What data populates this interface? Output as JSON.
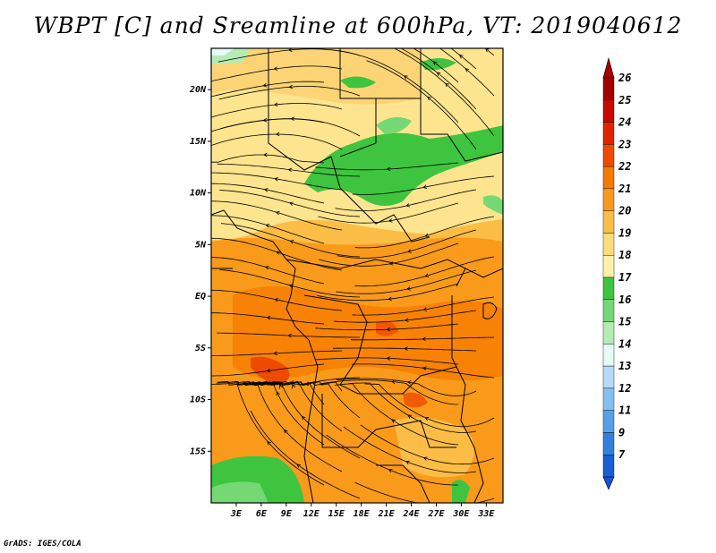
{
  "title": "WBPT [C] and Sreamline at 600hPa, VT: 2019040612",
  "credit": "GrADS: IGES/COLA",
  "map": {
    "lat_range": [
      -20,
      24
    ],
    "lon_range": [
      0,
      35
    ],
    "lat_ticks": [
      {
        "label": "20N",
        "value": 20
      },
      {
        "label": "15N",
        "value": 15
      },
      {
        "label": "10N",
        "value": 10
      },
      {
        "label": "5N",
        "value": 5
      },
      {
        "label": "EQ",
        "value": 0
      },
      {
        "label": "5S",
        "value": -5
      },
      {
        "label": "10S",
        "value": -10
      },
      {
        "label": "15S",
        "value": -15
      }
    ],
    "lon_ticks": [
      {
        "label": "3E",
        "value": 3
      },
      {
        "label": "6E",
        "value": 6
      },
      {
        "label": "9E",
        "value": 9
      },
      {
        "label": "12E",
        "value": 12
      },
      {
        "label": "15E",
        "value": 15
      },
      {
        "label": "18E",
        "value": 18
      },
      {
        "label": "21E",
        "value": 21
      },
      {
        "label": "24E",
        "value": 24
      },
      {
        "label": "27E",
        "value": 27
      },
      {
        "label": "30E",
        "value": 30
      },
      {
        "label": "33E",
        "value": 33
      }
    ]
  },
  "colorbar": {
    "levels": [
      {
        "label": "26",
        "color": "#a50000"
      },
      {
        "label": "25",
        "color": "#c80a00"
      },
      {
        "label": "24",
        "color": "#e02400"
      },
      {
        "label": "23",
        "color": "#ef4b00"
      },
      {
        "label": "22",
        "color": "#f57a00"
      },
      {
        "label": "21",
        "color": "#f99a1a"
      },
      {
        "label": "20",
        "color": "#fbbd46"
      },
      {
        "label": "19",
        "color": "#fddc7c"
      },
      {
        "label": "18",
        "color": "#fff1a8"
      },
      {
        "label": "17",
        "color": "#3ec43e"
      },
      {
        "label": "16",
        "color": "#74d874"
      },
      {
        "label": "15",
        "color": "#b4ecb4"
      },
      {
        "label": "14",
        "color": "#e6faf6"
      },
      {
        "label": "13",
        "color": "#b4dcf8"
      },
      {
        "label": "12",
        "color": "#84c0f0"
      },
      {
        "label": "11",
        "color": "#56a0ea"
      },
      {
        "label": "9",
        "color": "#3080e0"
      },
      {
        "label": "7",
        "color": "#1660d4"
      }
    ],
    "bottom_color": "#1a4ed8"
  }
}
